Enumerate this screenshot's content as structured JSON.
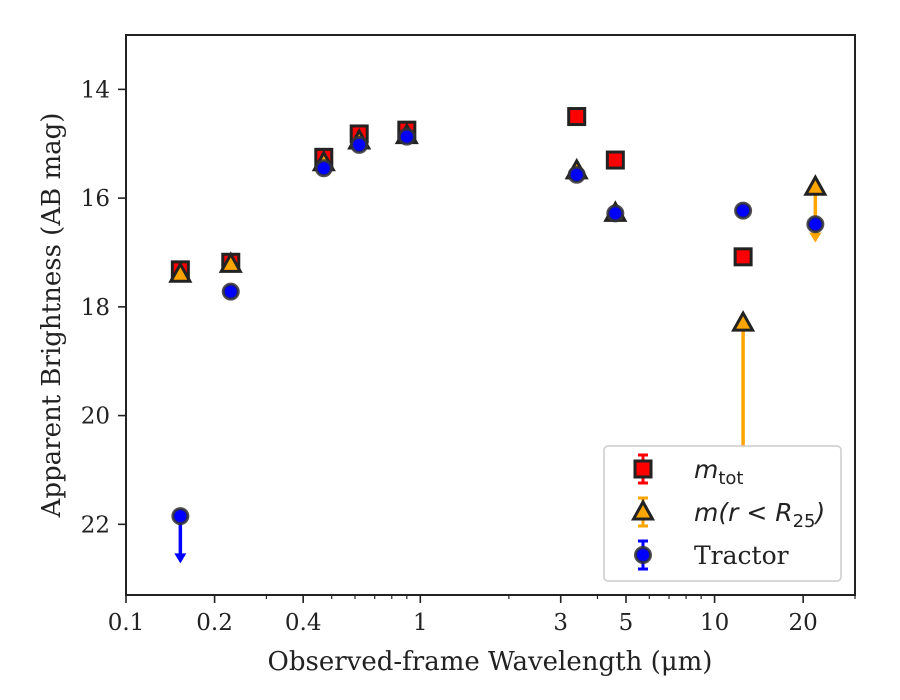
{
  "chart_data": {
    "type": "scatter",
    "title": "",
    "xlabel": "Observed-frame Wavelength (μm)",
    "ylabel": "Apparent Brightness (AB mag)",
    "xscale": "log",
    "xlim": [
      0.1,
      30
    ],
    "ylim": [
      23.3,
      13.0
    ],
    "y_inverted": true,
    "xticks": [
      0.1,
      0.2,
      0.4,
      1,
      3,
      5,
      10,
      20
    ],
    "xtick_labels": [
      "0.1",
      "0.2",
      "0.4",
      "1",
      "3",
      "5",
      "10",
      "20"
    ],
    "yticks": [
      14,
      16,
      18,
      20,
      22
    ],
    "ytick_labels": [
      "14",
      "16",
      "18",
      "20",
      "22"
    ],
    "grid": false,
    "legend_position": "bottom-right",
    "series": [
      {
        "name": "m_tot",
        "legend_main": "m",
        "legend_sub": "tot",
        "marker": "square",
        "color": "#ff0000",
        "edge_color": "#222222",
        "error_color": "#ff0000",
        "points": [
          {
            "x": 0.153,
            "y": 17.32
          },
          {
            "x": 0.227,
            "y": 17.18
          },
          {
            "x": 0.47,
            "y": 15.25
          },
          {
            "x": 0.62,
            "y": 14.82
          },
          {
            "x": 0.9,
            "y": 14.75
          },
          {
            "x": 3.4,
            "y": 14.5
          },
          {
            "x": 4.6,
            "y": 15.3
          },
          {
            "x": 12.5,
            "y": 17.08
          }
        ]
      },
      {
        "name": "m(r < R25)",
        "legend_main": "m(r < R",
        "legend_sub": "25",
        "legend_tail": ")",
        "marker": "triangle",
        "color": "#ffa500",
        "edge_color": "#222222",
        "error_color": "#ffa500",
        "points": [
          {
            "x": 0.153,
            "y": 17.4
          },
          {
            "x": 0.227,
            "y": 17.22
          },
          {
            "x": 0.47,
            "y": 15.35
          },
          {
            "x": 0.62,
            "y": 14.95
          },
          {
            "x": 0.9,
            "y": 14.85
          },
          {
            "x": 3.4,
            "y": 15.5
          },
          {
            "x": 4.6,
            "y": 16.28
          },
          {
            "x": 12.5,
            "y": 18.3,
            "yerr_upper_limit": 20.6
          },
          {
            "x": 22.0,
            "y": 15.8,
            "limit_arrow_to": 16.8
          }
        ]
      },
      {
        "name": "Tractor",
        "legend_main": "Tractor",
        "marker": "circle",
        "color": "#0000ff",
        "edge_color": "#333333",
        "error_color": "#0000ff",
        "points": [
          {
            "x": 0.153,
            "y": 21.85,
            "limit_arrow_to": 22.7
          },
          {
            "x": 0.227,
            "y": 17.72
          },
          {
            "x": 0.47,
            "y": 15.45
          },
          {
            "x": 0.62,
            "y": 15.02
          },
          {
            "x": 0.9,
            "y": 14.87
          },
          {
            "x": 3.4,
            "y": 15.57
          },
          {
            "x": 4.6,
            "y": 16.28
          },
          {
            "x": 12.5,
            "y": 16.23
          },
          {
            "x": 22.0,
            "y": 16.48
          }
        ]
      }
    ]
  }
}
